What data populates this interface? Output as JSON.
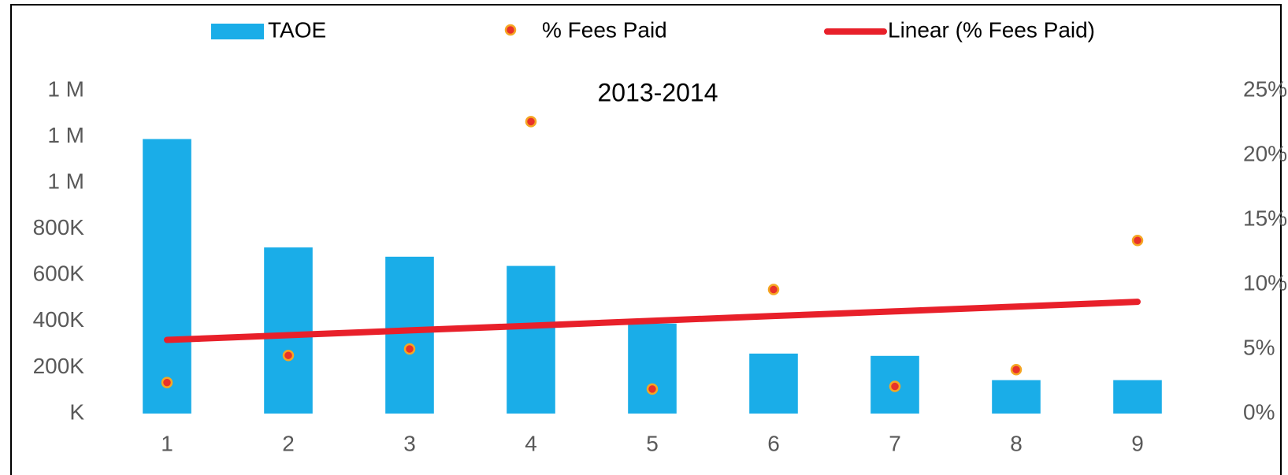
{
  "chart_data": {
    "type": "bar",
    "title": "2013-2014",
    "categories": [
      "1",
      "2",
      "3",
      "4",
      "5",
      "6",
      "7",
      "8",
      "9"
    ],
    "series": [
      {
        "name": "TAOE",
        "type": "bar",
        "color": "#1aade8",
        "axis": "y",
        "values": [
          1190000,
          720000,
          680000,
          640000,
          390000,
          260000,
          250000,
          145000,
          145000
        ]
      },
      {
        "name": "% Fees Paid",
        "type": "scatter",
        "color": "#e8322a",
        "axis": "y2",
        "values": [
          2.4,
          4.5,
          5.0,
          22.6,
          1.9,
          9.6,
          2.1,
          3.4,
          13.4
        ]
      },
      {
        "name": "Linear (% Fees Paid)",
        "type": "line",
        "color": "#e8202a",
        "axis": "y2",
        "values": [
          5.7,
          6.07,
          6.44,
          6.8,
          7.18,
          7.55,
          7.91,
          8.28,
          8.65
        ]
      }
    ],
    "ylim": [
      0,
      1400000
    ],
    "yticks": [
      {
        "value": 0,
        "label": "K"
      },
      {
        "value": 200000,
        "label": "200K"
      },
      {
        "value": 400000,
        "label": "400K"
      },
      {
        "value": 600000,
        "label": "600K"
      },
      {
        "value": 800000,
        "label": "800K"
      },
      {
        "value": 1000000,
        "label": "1 M"
      },
      {
        "value": 1200000,
        "label": "1 M"
      },
      {
        "value": 1400000,
        "label": "1 M"
      }
    ],
    "y2lim": [
      0,
      25
    ],
    "y2ticks": [
      {
        "value": 0,
        "label": "0%"
      },
      {
        "value": 5,
        "label": "5%"
      },
      {
        "value": 10,
        "label": "10%"
      },
      {
        "value": 15,
        "label": "15%"
      },
      {
        "value": 20,
        "label": "20%"
      },
      {
        "value": 25,
        "label": "25%"
      }
    ],
    "legend": "top",
    "grid": false
  }
}
